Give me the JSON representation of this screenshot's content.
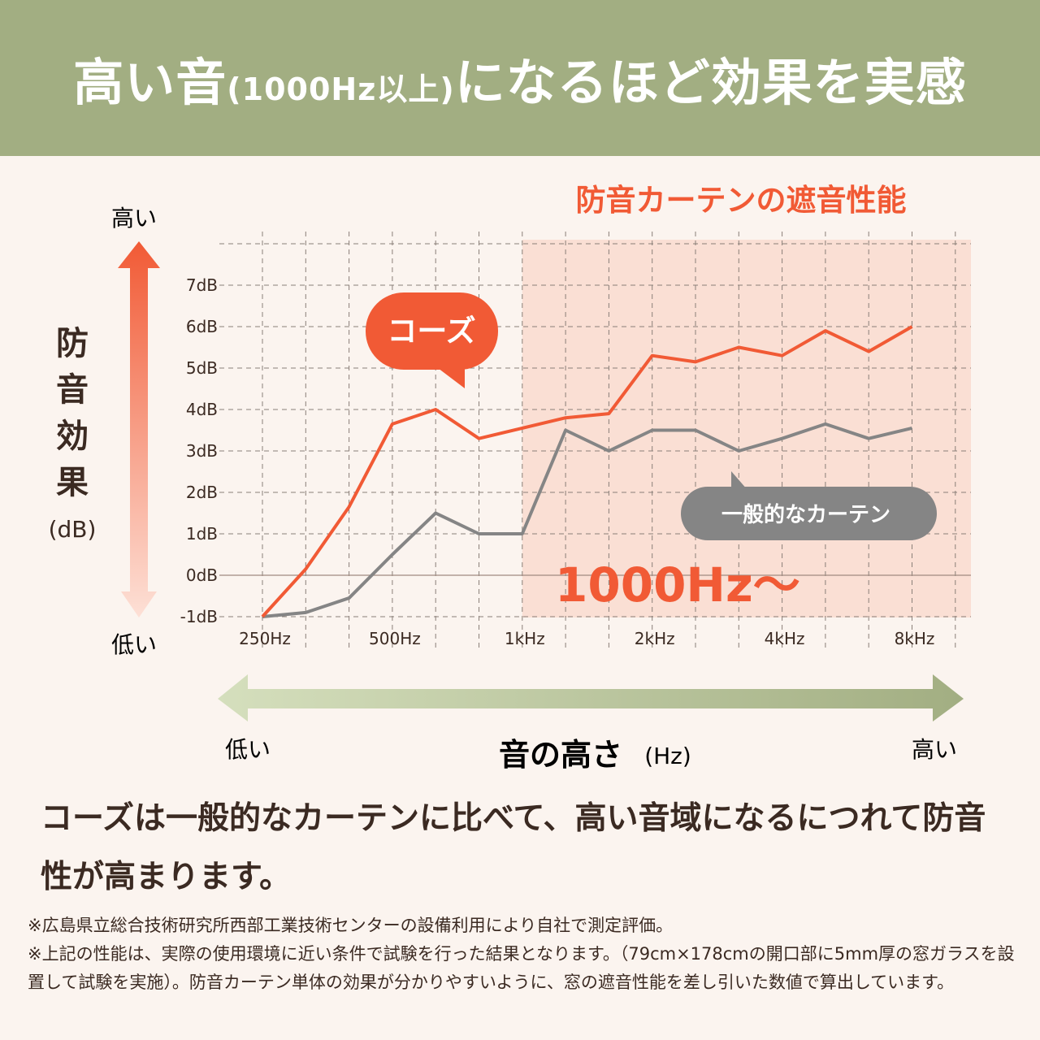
{
  "header": {
    "title_main": "高い音",
    "title_paren": "(1000Hz以上)",
    "title_rest": "になるほど効果を実感"
  },
  "colors": {
    "header_bg": "#a2ae82",
    "kozu": "#f15a35",
    "general": "#858585",
    "highlight_region": "#fadfd4",
    "background": "#fbf4ef"
  },
  "y_axis_arrow": {
    "top_label": "高い",
    "bottom_label": "低い",
    "title": "防音効果",
    "unit": "(dB)"
  },
  "x_axis_arrow": {
    "left_label": "低い",
    "right_label": "高い",
    "title": "音の高さ",
    "unit": "(Hz)"
  },
  "chart_data": {
    "type": "line",
    "title": "防音カーテンの遮音性能",
    "annotation": "1000Hz〜",
    "highlight_from": "1kHz",
    "x": [
      "250Hz",
      "315Hz",
      "400Hz",
      "500Hz",
      "630Hz",
      "800Hz",
      "1kHz",
      "1.25kHz",
      "1.6kHz",
      "2kHz",
      "2.5kHz",
      "3.15kHz",
      "4kHz",
      "5kHz",
      "6.3kHz",
      "8kHz"
    ],
    "x_tick_labels": [
      "250Hz",
      "500Hz",
      "1kHz",
      "2kHz",
      "4kHz",
      "8kHz"
    ],
    "y_tick_labels": [
      "7dB",
      "6dB",
      "5dB",
      "4dB",
      "3dB",
      "2dB",
      "1dB",
      "0dB",
      "-1dB"
    ],
    "ylim": [
      -1,
      7
    ],
    "grid": true,
    "series": [
      {
        "name": "コーズ",
        "color": "#f15a35",
        "values": [
          -1.0,
          0.15,
          1.65,
          3.65,
          4.0,
          3.3,
          3.55,
          3.8,
          3.9,
          5.3,
          5.15,
          5.5,
          5.3,
          5.9,
          5.4,
          6.0
        ]
      },
      {
        "name": "一般的なカーテン",
        "color": "#858585",
        "values": [
          -1.0,
          -0.9,
          -0.55,
          0.5,
          1.5,
          1.0,
          1.0,
          3.5,
          3.0,
          3.5,
          3.5,
          3.0,
          3.3,
          3.65,
          3.3,
          3.55
        ]
      }
    ]
  },
  "description": "コーズは一般的なカーテンに比べて、高い音域になるにつれて防音性が高まります。",
  "notes": [
    "※広島県立総合技術研究所西部工業技術センターの設備利用により自社で測定評価。",
    "※上記の性能は、実際の使用環境に近い条件で試験を行った結果となります。（79cm×178cmの開口部に5mm厚の窓ガラスを設置して試験を実施）。防音カーテン単体の効果が分かりやすいように、窓の遮音性能を差し引いた数値で算出しています。"
  ]
}
